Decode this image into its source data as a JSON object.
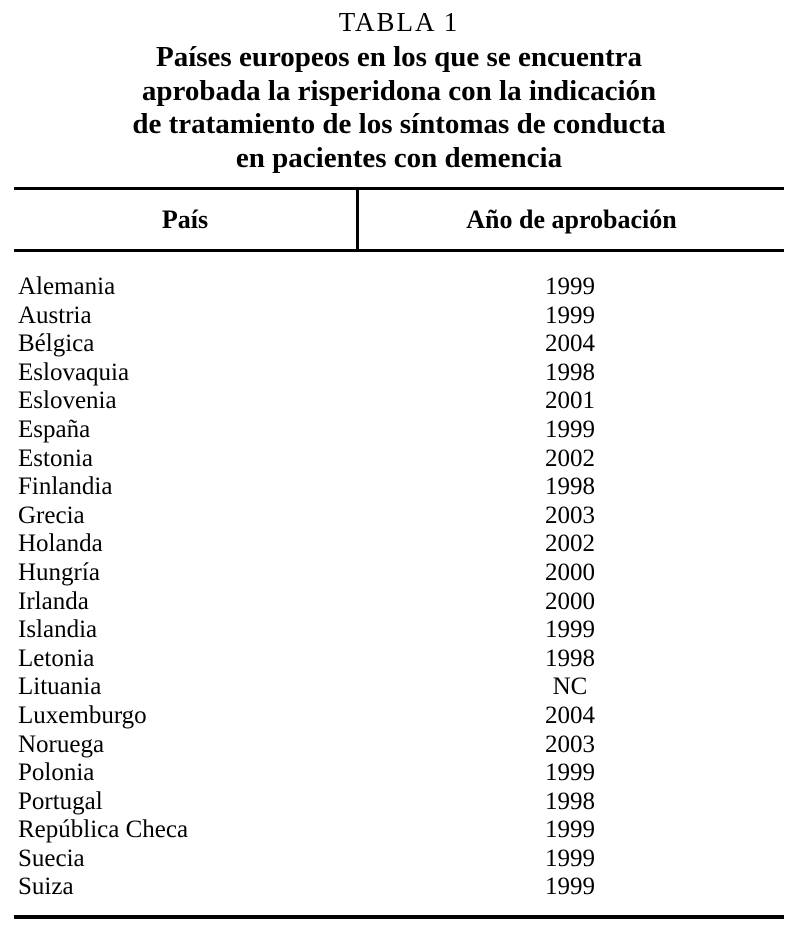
{
  "page": {
    "label": "TABLA 1",
    "title_lines": [
      "Países europeos en los que se encuentra",
      "aprobada la risperidona con la indicación",
      "de tratamiento de los síntomas de conducta",
      "en pacientes con demencia"
    ]
  },
  "table": {
    "columns": [
      {
        "label": "País"
      },
      {
        "label": "Año de aprobación"
      }
    ],
    "rows": [
      {
        "country": "Alemania",
        "year": "1999"
      },
      {
        "country": "Austria",
        "year": "1999"
      },
      {
        "country": "Bélgica",
        "year": "2004"
      },
      {
        "country": "Eslovaquia",
        "year": "1998"
      },
      {
        "country": "Eslovenia",
        "year": "2001"
      },
      {
        "country": "España",
        "year": "1999"
      },
      {
        "country": "Estonia",
        "year": "2002"
      },
      {
        "country": "Finlandia",
        "year": "1998"
      },
      {
        "country": "Grecia",
        "year": "2003"
      },
      {
        "country": "Holanda",
        "year": "2002"
      },
      {
        "country": "Hungría",
        "year": "2000"
      },
      {
        "country": "Irlanda",
        "year": "2000"
      },
      {
        "country": "Islandia",
        "year": "1999"
      },
      {
        "country": "Letonia",
        "year": "1998"
      },
      {
        "country": "Lituania",
        "year": "NC"
      },
      {
        "country": "Luxemburgo",
        "year": "2004"
      },
      {
        "country": "Noruega",
        "year": "2003"
      },
      {
        "country": "Polonia",
        "year": "1999"
      },
      {
        "country": "Portugal",
        "year": "1998"
      },
      {
        "country": "República Checa",
        "year": "1999"
      },
      {
        "country": "Suecia",
        "year": "1999"
      },
      {
        "country": "Suiza",
        "year": "1999"
      }
    ]
  },
  "colors": {
    "text": "#000000",
    "background": "#ffffff",
    "rule": "#000000"
  }
}
